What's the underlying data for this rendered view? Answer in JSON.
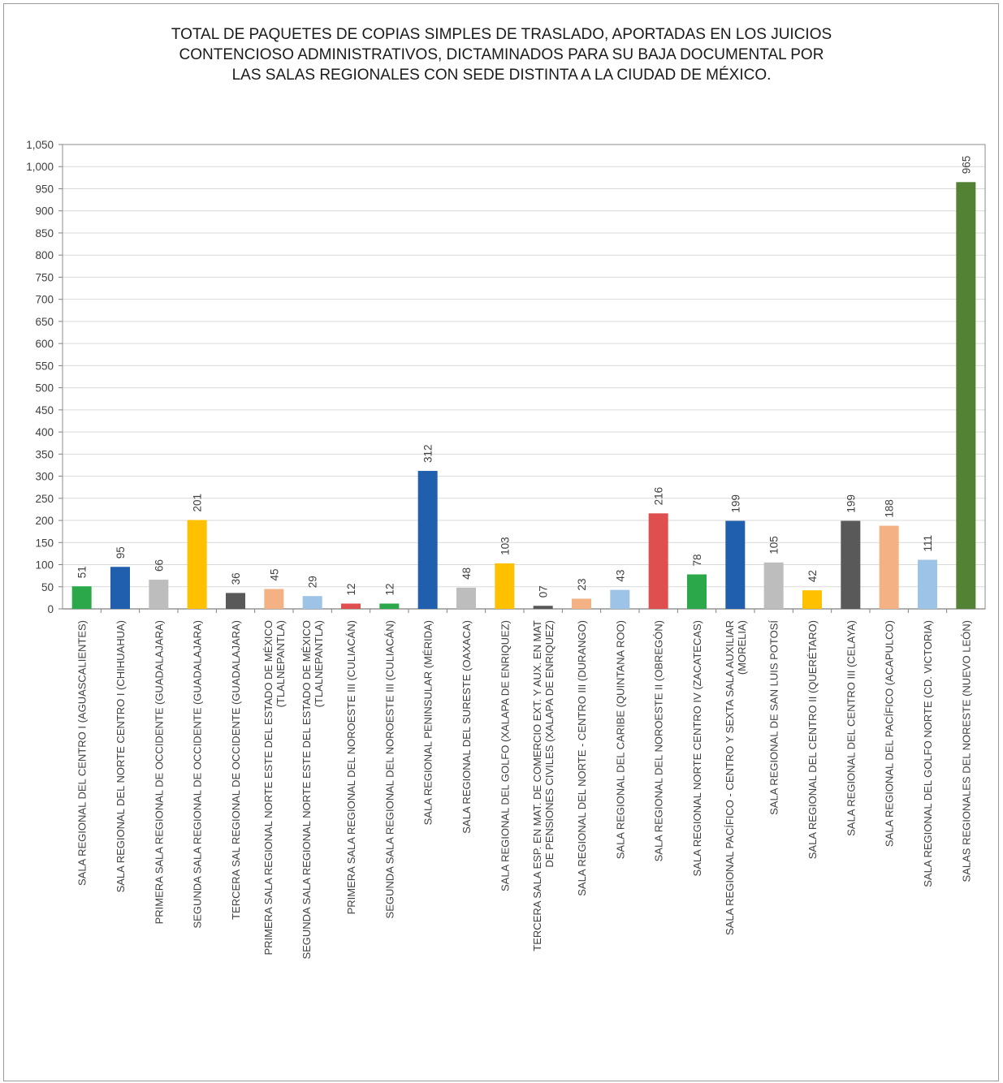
{
  "chart_data": {
    "type": "bar",
    "title_lines": [
      "TOTAL DE PAQUETES DE COPIAS SIMPLES DE TRASLADO, APORTADAS EN LOS JUICIOS",
      "CONTENCIOSO ADMINISTRATIVOS, DICTAMINADOS PARA SU BAJA DOCUMENTAL POR",
      "LAS SALAS REGIONALES CON SEDE DISTINTA A LA CIUDAD DE MÉXICO."
    ],
    "ylim": [
      0,
      1050
    ],
    "ytick_step": 50,
    "ytick_labels": [
      "0",
      "50",
      "100",
      "150",
      "200",
      "250",
      "300",
      "350",
      "400",
      "450",
      "500",
      "550",
      "600",
      "650",
      "700",
      "750",
      "800",
      "850",
      "900",
      "950",
      "1,000",
      "1,050"
    ],
    "grid": true,
    "categories": [
      [
        "SALA REGIONAL DEL CENTRO I (AGUASCALIENTES)"
      ],
      [
        "SALA REGIONAL DEL NORTE CENTRO I (CHIHUAHUA)"
      ],
      [
        "PRIMERA SALA REGIONAL DE OCCIDENTE (GUADALAJARA)"
      ],
      [
        "SEGUNDA SALA REGIONAL DE OCCIDENTE (GUADALAJARA)"
      ],
      [
        "TERCERA SAL REGIONAL DE OCCIDENTE (GUADALAJARA)"
      ],
      [
        "PRIMERA SALA REGIONAL NORTE ESTE DEL ESTADO DE MÉXICO",
        "(TLALNEPANTLA)"
      ],
      [
        "SEGUNDA SALA REGIONAL NORTE ESTE DEL ESTADO DE MÉXICO",
        "(TLALNEPANTLA)"
      ],
      [
        "PRIMERA SALA REGIONAL DEL NOROESTE III (CULIACÁN)"
      ],
      [
        "SEGUNDA SALA REGIONAL DEL NOROESTE III (CULIACÁN)"
      ],
      [
        "SALA REGIONAL PENINSULAR (MÉRIDA)"
      ],
      [
        "SALA REGIONAL DEL SURESTE (OAXACA)"
      ],
      [
        "SALA REGIONAL DEL GOLFO (XALAPA DE ENRIQUEZ)"
      ],
      [
        "TERCERA SALA ESP. EN MAT. DE COMERCIO EXT. Y AUX. EN MAT",
        "DE PENSIONES CIVILES (XALAPA DE ENRIQUEZ)"
      ],
      [
        "SALA REGIONAL DEL NORTE - CENTRO III (DURANGO)"
      ],
      [
        "SALA REGIONAL DEL CARIBE (QUINTANA ROO)"
      ],
      [
        "SALA REGIONAL DEL NOROESTE II (OBREGÓN)"
      ],
      [
        "SALA REGIONAL NORTE CENTRO IV (ZACATECAS)"
      ],
      [
        "SALA REGIONAL PACÍFICO - CENTRO Y SEXTA SALA AUXILIAR",
        "(MORELIA)"
      ],
      [
        "SALA REGIONAL DE SAN LUIS POTOSÍ"
      ],
      [
        "SALA REGIONAL DEL CENTRO II (QUERÉTARO)"
      ],
      [
        "SALA REGIONAL DEL CENTRO III (CELAYA)"
      ],
      [
        "SALA REGIONAL DEL PACÍFICO (ACAPULCO)"
      ],
      [
        "SALA REGIONAL DEL GOLFO NORTE (CD. VICTORIA)"
      ],
      [
        "SALAS REGIONALES DEL NORESTE (NUEVO LEÓN)"
      ]
    ],
    "values": [
      51,
      95,
      66,
      201,
      36,
      45,
      29,
      12,
      12,
      312,
      48,
      103,
      7,
      23,
      43,
      216,
      78,
      199,
      105,
      42,
      199,
      188,
      111,
      965
    ],
    "value_labels": [
      "51",
      "95",
      "66",
      "201",
      "36",
      "45",
      "29",
      "12",
      "12",
      "312",
      "48",
      "103",
      "07",
      "23",
      "43",
      "216",
      "78",
      "199",
      "105",
      "42",
      "199",
      "188",
      "111",
      "965"
    ],
    "colors": [
      "#2aa84a",
      "#1f5fae",
      "#bdbdbd",
      "#ffc000",
      "#595959",
      "#f4b183",
      "#9dc3e6",
      "#e04f4f",
      "#2aa84a",
      "#1f5fae",
      "#bdbdbd",
      "#ffc000",
      "#595959",
      "#f4b183",
      "#9dc3e6",
      "#e04f4f",
      "#2aa84a",
      "#1f5fae",
      "#bdbdbd",
      "#ffc000",
      "#595959",
      "#f4b183",
      "#9dc3e6",
      "#548235"
    ]
  }
}
